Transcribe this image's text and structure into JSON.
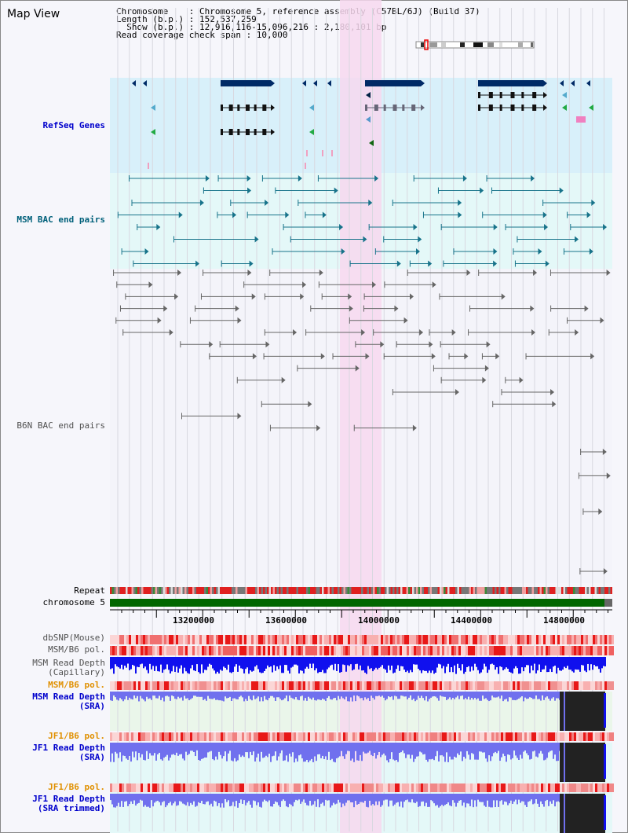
{
  "page": {
    "title": "Map View"
  },
  "info": {
    "line1": "Chromosome    : Chromosome 5, reference assembly (C57BL/6J) (Build 37)",
    "line2": "Length (b.p.) : 152,537,259",
    "line3": "  Show (b.p.) : 12,916,116-15,096,216 : 2,180,101 bp",
    "line4": "Read coverage check span : 10,000"
  },
  "tracks": {
    "refseq": "RefSeq Genes",
    "msm_bac": "MSM BAC end pairs",
    "b6n_bac": "B6N BAC end pairs",
    "repeat": "Repeat",
    "chromosome": "chromosome 5",
    "dbsnp": "dbSNP(Mouse)",
    "msm_b6_pol_1": "MSM/B6 pol.",
    "msm_read_depth_cap": "MSM Read Depth\n(Capillary)",
    "msm_b6_pol_2": "MSM/B6 pol.",
    "msm_read_depth_sra": "MSM Read Depth\n(SRA)",
    "jf1_b6_pol_1": "JF1/B6 pol.",
    "jf1_read_depth_sra": "JF1 Read Depth\n(SRA)",
    "jf1_b6_pol_2": "JF1/B6 pol.",
    "jf1_read_depth_trim": "JF1 Read Depth\n(SRA trimmed)"
  },
  "axis": {
    "ticks": [
      "13200000",
      "13600000",
      "14000000",
      "14400000",
      "14800000"
    ]
  },
  "colors": {
    "refseq_bg": "#d8f0fa",
    "msm_bg": "#e4f8f8",
    "highlight": "#f7d8ef",
    "gene": "#002a66",
    "chromosome_bar": "#006600",
    "snp": "#e83a3a",
    "depth_dark": "#1010ee",
    "depth_light": "#7070ee"
  }
}
